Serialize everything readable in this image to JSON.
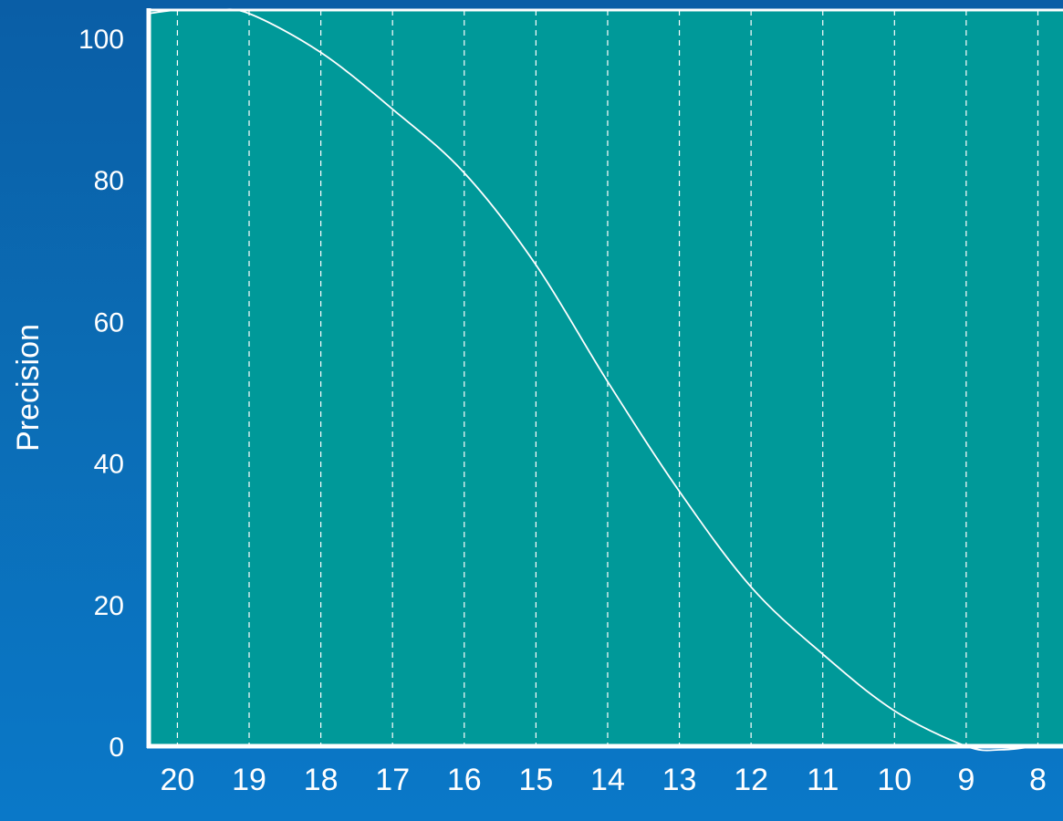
{
  "chart_data": {
    "type": "line",
    "title": "",
    "xlabel": "",
    "ylabel": "Precision",
    "x_ticks": [
      "20",
      "19",
      "18",
      "17",
      "16",
      "15",
      "14",
      "13",
      "12",
      "11",
      "10",
      "9",
      "8"
    ],
    "y_ticks": [
      "0",
      "20",
      "40",
      "60",
      "80",
      "100"
    ],
    "xlim": [
      20.4,
      7.65
    ],
    "ylim": [
      0,
      104
    ],
    "x_grid": "dashed vertical lines at each x tick",
    "y_grid": false,
    "series": [
      {
        "name": "",
        "x": [
          20.4,
          20,
          19.5,
          19,
          18,
          17,
          16,
          15,
          14,
          13,
          12,
          11,
          10,
          9,
          8.5,
          8,
          7.65
        ],
        "y": [
          103.5,
          104,
          104,
          103.5,
          98,
          90,
          81,
          68,
          51.5,
          36,
          22.5,
          13,
          5,
          0,
          -0.5,
          0,
          0
        ]
      }
    ],
    "colors": {
      "background": "#0b6cb4",
      "plot_area": "#009999",
      "axes": "#ffffff",
      "gridlines": "#ffffff",
      "line": "#ffffff",
      "text": "#ffffff"
    }
  }
}
